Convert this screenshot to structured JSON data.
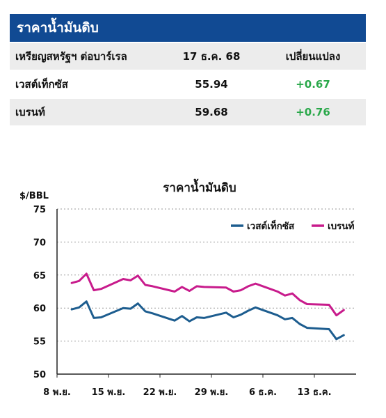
{
  "table": {
    "title": "ราคาน้ำมันดิบ",
    "headers": [
      "เหรียญสหรัฐฯ ต่อบาร์เรล",
      "17 ธ.ค. 68",
      "เปลี่ยนแปลง"
    ],
    "rows": [
      {
        "name": "เวสต์เท็กซัส",
        "price": "55.94",
        "change": "+0.67"
      },
      {
        "name": "เบรนท์",
        "price": "59.68",
        "change": "+0.76"
      }
    ],
    "colors": {
      "header_bg": "#114a93",
      "row_shade": "#ececec",
      "positive": "#2aa84a"
    }
  },
  "chart_data": {
    "type": "line",
    "title": "ราคาน้ำมันดิบ",
    "ylabel": "$/BBL",
    "xlabel": "",
    "ylim": [
      50,
      75
    ],
    "yticks": [
      50,
      55,
      60,
      65,
      70,
      75
    ],
    "grid": true,
    "legend_position": "top-right",
    "x_tick_labels": [
      "8 พ.ย.",
      "15 พ.ย.",
      "22 พ.ย.",
      "29 พ.ย.",
      "6 ธ.ค.",
      "13 ธ.ค."
    ],
    "x": [
      "2025-11-10",
      "2025-11-11",
      "2025-11-12",
      "2025-11-13",
      "2025-11-14",
      "2025-11-17",
      "2025-11-18",
      "2025-11-19",
      "2025-11-20",
      "2025-11-21",
      "2025-11-24",
      "2025-11-25",
      "2025-11-26",
      "2025-11-27",
      "2025-11-28",
      "2025-12-01",
      "2025-12-02",
      "2025-12-03",
      "2025-12-04",
      "2025-12-05",
      "2025-12-08",
      "2025-12-09",
      "2025-12-10",
      "2025-12-11",
      "2025-12-12",
      "2025-12-15",
      "2025-12-16",
      "2025-12-17"
    ],
    "series": [
      {
        "name": "เวสต์เท็กซัส",
        "color": "#1d5d8f",
        "values": [
          59.8,
          60.1,
          61.0,
          58.5,
          58.6,
          60.0,
          59.9,
          60.7,
          59.5,
          59.2,
          58.1,
          58.8,
          58.0,
          58.6,
          58.5,
          59.3,
          58.6,
          59.0,
          59.6,
          60.1,
          58.9,
          58.3,
          58.5,
          57.6,
          57.0,
          56.8,
          55.3,
          55.9
        ]
      },
      {
        "name": "เบรนท์",
        "color": "#c81b8c",
        "values": [
          63.8,
          64.1,
          65.2,
          62.7,
          62.9,
          64.4,
          64.2,
          64.9,
          63.5,
          63.3,
          62.5,
          63.2,
          62.6,
          63.3,
          63.2,
          63.1,
          62.5,
          62.7,
          63.3,
          63.7,
          62.5,
          61.9,
          62.2,
          61.2,
          60.6,
          60.5,
          58.9,
          59.7
        ]
      }
    ]
  }
}
